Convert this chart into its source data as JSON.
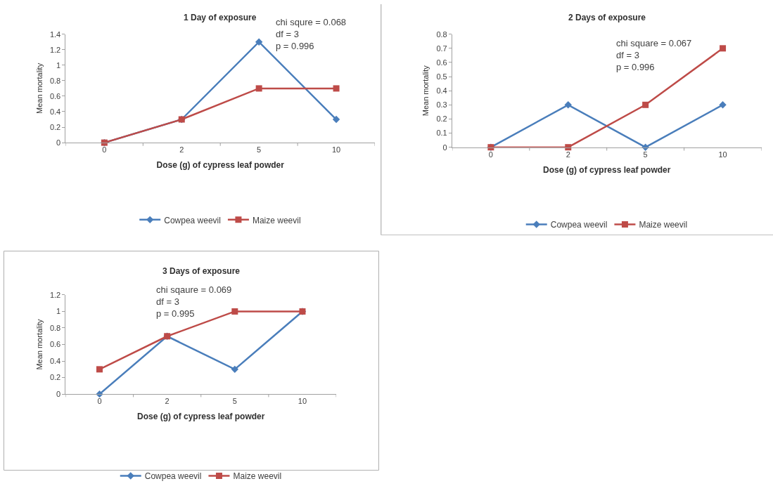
{
  "chart_data": [
    {
      "type": "line",
      "title": "1 Day of exposure",
      "xlabel": "Dose (g) of cypress leaf powder",
      "ylabel": "Mean mortality",
      "categories": [
        "0",
        "2",
        "5",
        "10"
      ],
      "ylim": [
        0,
        1.4
      ],
      "yticks": [
        0,
        0.2,
        0.4,
        0.6,
        0.8,
        1,
        1.2,
        1.4
      ],
      "legend": "bottom",
      "annotations": [
        "chi squre = 0.068",
        "df = 3",
        "p = 0.996"
      ],
      "series": [
        {
          "name": "Cowpea weevil",
          "color": "#4a7ebb",
          "marker": "diamond",
          "values": [
            0,
            0.3,
            1.3,
            0.3
          ]
        },
        {
          "name": "Maize weevil",
          "color": "#be4b48",
          "marker": "square",
          "values": [
            0,
            0.3,
            0.7,
            0.7
          ]
        }
      ]
    },
    {
      "type": "line",
      "title": "2 Days of exposure",
      "xlabel": "Dose (g) of cypress leaf powder",
      "ylabel": "Mean mortality",
      "categories": [
        "0",
        "2",
        "5",
        "10"
      ],
      "ylim": [
        0,
        0.8
      ],
      "yticks": [
        0,
        0.1,
        0.2,
        0.3,
        0.4,
        0.5,
        0.6,
        0.7,
        0.8
      ],
      "legend": "bottom",
      "annotations": [
        "chi square = 0.067",
        "df = 3",
        "p = 0.996"
      ],
      "series": [
        {
          "name": "Cowpea weevil",
          "color": "#4a7ebb",
          "marker": "diamond",
          "values": [
            0,
            0.3,
            0,
            0.3
          ]
        },
        {
          "name": "Maize weevil",
          "color": "#be4b48",
          "marker": "square",
          "values": [
            0,
            0,
            0.3,
            0.7
          ]
        }
      ]
    },
    {
      "type": "line",
      "title": "3 Days of exposure",
      "xlabel": "Dose (g) of cypress leaf powder",
      "ylabel": "Mean mortality",
      "categories": [
        "0",
        "2",
        "5",
        "10"
      ],
      "ylim": [
        0,
        1.2
      ],
      "yticks": [
        0,
        0.2,
        0.4,
        0.6,
        0.8,
        1,
        1.2
      ],
      "legend": "bottom",
      "annotations": [
        "chi sqaure = 0.069",
        "df = 3",
        "p = 0.995"
      ],
      "series": [
        {
          "name": "Cowpea weevil",
          "color": "#4a7ebb",
          "marker": "diamond",
          "values": [
            0,
            0.7,
            0.3,
            1
          ]
        },
        {
          "name": "Maize weevil",
          "color": "#be4b48",
          "marker": "square",
          "values": [
            0.3,
            0.7,
            1,
            1
          ]
        }
      ]
    }
  ]
}
